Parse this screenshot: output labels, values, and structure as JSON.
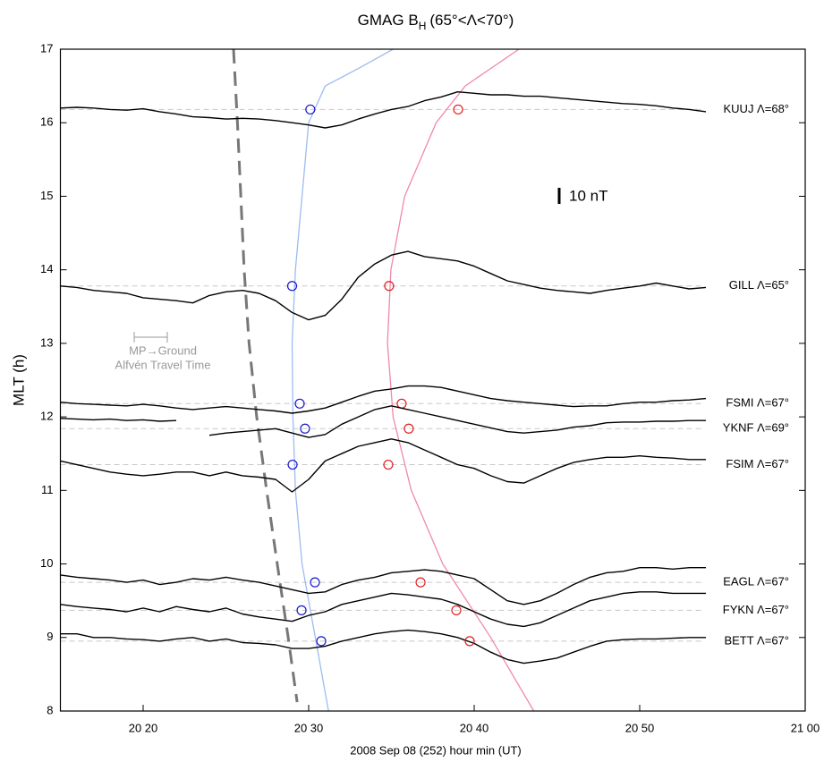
{
  "chart_data": {
    "type": "line",
    "title": "GMAG B",
    "title_sub": "H",
    "title_rest": "(65°<Λ<70°)",
    "y_label": "MLT (h)",
    "x_label": "2008 Sep 08 (252)  hour min (UT)",
    "xlim": [
      15,
      60
    ],
    "ylim": [
      8,
      17
    ],
    "xticks": [
      {
        "value": 20,
        "label": "20 20"
      },
      {
        "value": 30,
        "label": "20 30"
      },
      {
        "value": 40,
        "label": "20 40"
      },
      {
        "value": 50,
        "label": "20 50"
      },
      {
        "value": 60,
        "label": "21 00"
      }
    ],
    "yticks": [
      8,
      9,
      10,
      11,
      12,
      13,
      14,
      15,
      16,
      17
    ],
    "x": [
      15,
      16,
      17,
      18,
      19,
      20,
      21,
      22,
      23,
      24,
      25,
      26,
      27,
      28,
      29,
      30,
      31,
      32,
      33,
      34,
      35,
      36,
      37,
      38,
      39,
      40,
      41,
      42,
      43,
      44,
      45,
      46,
      47,
      48,
      49,
      50,
      51,
      52,
      53,
      54
    ],
    "trace_color": "#000000",
    "baseline_color": "#c8c8c8",
    "stations": [
      {
        "name": "KUUJ Λ=68°",
        "baseline": 16.18,
        "blue": 30.1,
        "red": 39.03,
        "values": [
          16.2,
          16.21,
          16.2,
          16.18,
          16.17,
          16.19,
          16.15,
          16.12,
          16.08,
          16.07,
          16.05,
          16.06,
          16.05,
          16.03,
          16.0,
          15.97,
          15.93,
          15.97,
          16.05,
          16.12,
          16.18,
          16.22,
          16.3,
          16.35,
          16.42,
          16.4,
          16.38,
          16.38,
          16.36,
          16.36,
          16.34,
          16.32,
          16.3,
          16.28,
          16.26,
          16.25,
          16.23,
          16.2,
          16.18,
          16.15
        ]
      },
      {
        "name": "GILL Λ=65°",
        "baseline": 13.78,
        "blue": 29.0,
        "red": 34.86,
        "values": [
          13.78,
          13.76,
          13.72,
          13.7,
          13.68,
          13.62,
          13.6,
          13.58,
          13.55,
          13.65,
          13.7,
          13.72,
          13.68,
          13.58,
          13.42,
          13.32,
          13.38,
          13.6,
          13.9,
          14.08,
          14.2,
          14.25,
          14.18,
          14.15,
          14.12,
          14.05,
          13.95,
          13.85,
          13.8,
          13.75,
          13.72,
          13.7,
          13.68,
          13.72,
          13.75,
          13.78,
          13.82,
          13.78,
          13.74,
          13.76
        ]
      },
      {
        "name": "FSMI Λ=67°",
        "baseline": 12.18,
        "blue": 29.46,
        "red": 35.62,
        "values": [
          12.2,
          12.18,
          12.17,
          12.16,
          12.15,
          12.17,
          12.15,
          12.12,
          12.1,
          12.12,
          12.14,
          12.12,
          12.1,
          12.08,
          12.05,
          12.08,
          12.12,
          12.2,
          12.28,
          12.35,
          12.38,
          12.42,
          12.42,
          12.4,
          12.35,
          12.3,
          12.25,
          12.22,
          12.2,
          12.18,
          12.16,
          12.14,
          12.15,
          12.15,
          12.18,
          12.2,
          12.2,
          12.22,
          12.23,
          12.25
        ]
      },
      {
        "name": "YKNF Λ=69°",
        "baseline": 11.84,
        "blue": 29.78,
        "red": 36.05,
        "values": [
          11.98,
          11.97,
          11.96,
          11.97,
          11.95,
          11.96,
          11.94,
          11.95,
          null,
          11.75,
          11.78,
          11.8,
          11.82,
          11.84,
          11.78,
          11.72,
          11.76,
          11.9,
          12.0,
          12.1,
          12.15,
          12.1,
          12.05,
          12.0,
          11.95,
          11.9,
          11.85,
          11.8,
          11.78,
          11.8,
          11.82,
          11.86,
          11.88,
          11.92,
          11.93,
          11.93,
          11.94,
          11.94,
          11.95,
          11.95
        ]
      },
      {
        "name": "FSIM Λ=67°",
        "baseline": 11.35,
        "blue": 29.03,
        "red": 34.81,
        "values": [
          11.4,
          11.35,
          11.3,
          11.25,
          11.22,
          11.2,
          11.22,
          11.25,
          11.25,
          11.2,
          11.25,
          11.2,
          11.18,
          11.15,
          10.98,
          11.15,
          11.4,
          11.5,
          11.6,
          11.65,
          11.7,
          11.65,
          11.55,
          11.45,
          11.35,
          11.3,
          11.2,
          11.12,
          11.1,
          11.2,
          11.3,
          11.38,
          11.42,
          11.45,
          11.45,
          11.47,
          11.45,
          11.44,
          11.42,
          11.42
        ]
      },
      {
        "name": "EAGL Λ=67°",
        "baseline": 9.75,
        "blue": 30.38,
        "red": 36.76,
        "values": [
          9.85,
          9.82,
          9.8,
          9.78,
          9.75,
          9.78,
          9.72,
          9.75,
          9.8,
          9.78,
          9.82,
          9.78,
          9.75,
          9.7,
          9.65,
          9.6,
          9.62,
          9.72,
          9.78,
          9.82,
          9.88,
          9.9,
          9.92,
          9.9,
          9.85,
          9.8,
          9.65,
          9.5,
          9.45,
          9.5,
          9.6,
          9.72,
          9.82,
          9.88,
          9.9,
          9.95,
          9.95,
          9.93,
          9.95,
          9.95
        ]
      },
      {
        "name": "FYKN Λ=67°",
        "baseline": 9.37,
        "blue": 29.57,
        "red": 38.92,
        "values": [
          9.45,
          9.42,
          9.4,
          9.38,
          9.35,
          9.4,
          9.35,
          9.42,
          9.38,
          9.35,
          9.4,
          9.32,
          9.28,
          9.25,
          9.22,
          9.3,
          9.35,
          9.45,
          9.5,
          9.55,
          9.6,
          9.58,
          9.55,
          9.52,
          9.45,
          9.35,
          9.25,
          9.18,
          9.15,
          9.2,
          9.3,
          9.4,
          9.5,
          9.55,
          9.6,
          9.62,
          9.62,
          9.6,
          9.6,
          9.6
        ]
      },
      {
        "name": "BETT Λ=67°",
        "baseline": 8.95,
        "blue": 30.76,
        "red": 39.73,
        "values": [
          9.05,
          9.05,
          9.0,
          9.0,
          8.98,
          8.97,
          8.95,
          8.98,
          9.0,
          8.95,
          8.98,
          8.93,
          8.92,
          8.9,
          8.85,
          8.85,
          8.88,
          8.95,
          9.0,
          9.05,
          9.08,
          9.1,
          9.08,
          9.05,
          9.0,
          8.92,
          8.8,
          8.7,
          8.65,
          8.68,
          8.72,
          8.8,
          8.88,
          8.95,
          8.97,
          8.98,
          8.98,
          8.99,
          9.0,
          9.0
        ]
      }
    ],
    "blue_marker_color": "#1a1acc",
    "red_marker_color": "#e02020",
    "curves": [
      {
        "color": "#9dbcf0",
        "dashed": false,
        "x": [
          31.2,
          30.4,
          29.6,
          29.2,
          29.05,
          29.0,
          29.2,
          29.6,
          30.0,
          31.0,
          33.1,
          35.1
        ],
        "y": [
          8,
          9,
          10,
          11,
          12,
          13,
          14,
          15,
          16,
          16.5,
          16.75,
          17
        ]
      },
      {
        "color": "#f088aa",
        "dashed": false,
        "x": [
          43.6,
          41.0,
          38.1,
          36.2,
          35.1,
          34.76,
          34.97,
          35.8,
          37.7,
          39.46,
          42.7
        ],
        "y": [
          8,
          9,
          10,
          11,
          12,
          13,
          14,
          15,
          16,
          16.5,
          17
        ]
      },
      {
        "color": "#777777",
        "dashed": true,
        "x": [
          25.46,
          25.7,
          26.1,
          26.4,
          26.86,
          27.46,
          28.1,
          28.76,
          29.3
        ],
        "y": [
          17,
          16,
          14,
          13,
          12,
          11,
          10,
          9,
          8.12
        ]
      }
    ],
    "scale_label": "10 nT",
    "travel_label_1": "MP→Ground",
    "travel_label_2": "Alfvén Travel Time"
  }
}
